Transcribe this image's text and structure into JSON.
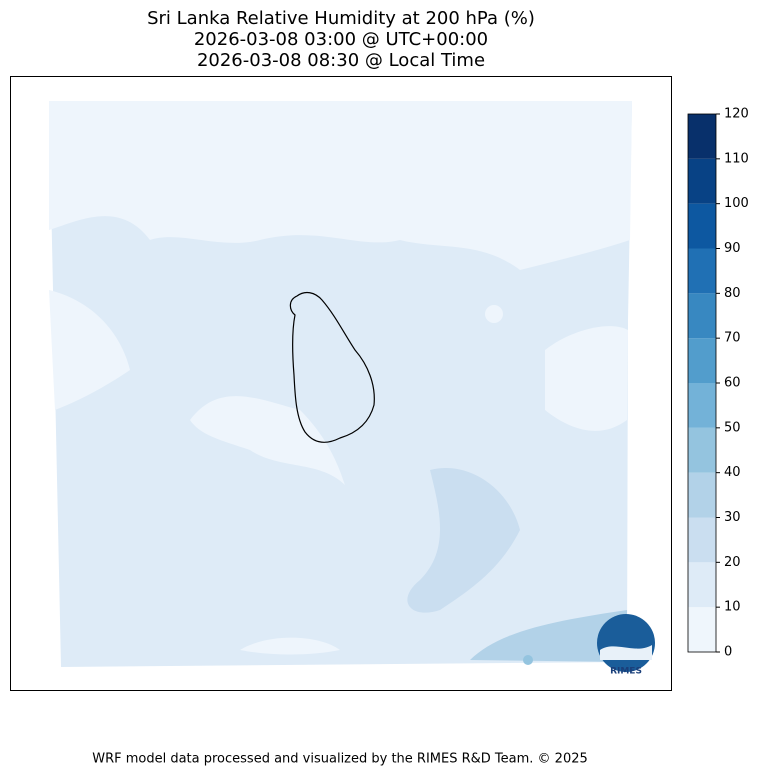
{
  "title": [
    "Sri Lanka Relative Humidity at 200 hPa (%)",
    "2026-03-08 03:00 @ UTC+00:00",
    "2026-03-08 08:30 @ Local Time"
  ],
  "colorbar": {
    "levels": [
      0,
      10,
      20,
      30,
      40,
      50,
      60,
      70,
      80,
      90,
      100,
      110,
      120
    ],
    "colors": [
      "#eff6fc",
      "#deebf7",
      "#cadef0",
      "#b2d2e8",
      "#94c4df",
      "#73b2d8",
      "#529dcc",
      "#3888c1",
      "#2070b4",
      "#0d58a1",
      "#084285",
      "#08306b"
    ]
  },
  "footer": "WRF model data processed and visualized by the RIMES R&D Team. © 2025",
  "logo": "RIMES"
}
